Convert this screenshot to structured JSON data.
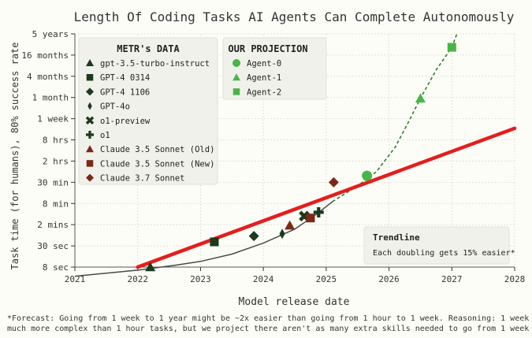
{
  "chart_data": {
    "type": "scatter",
    "title": "Length Of Coding Tasks AI Agents Can Complete Autonomously",
    "xlabel": "Model release date",
    "ylabel": "Task time (for humans), 80% success rate",
    "x_ticks": [
      "2021",
      "2022",
      "2023",
      "2024",
      "2025",
      "2026",
      "2027",
      "2028"
    ],
    "xlim": [
      2021,
      2028
    ],
    "y_scale": "log",
    "y_unit": "minutes",
    "y_ticks": [
      {
        "label": "8 sec",
        "minutes": 0.133
      },
      {
        "label": "30 sec",
        "minutes": 0.5
      },
      {
        "label": "2 mins",
        "minutes": 2
      },
      {
        "label": "8 min",
        "minutes": 8
      },
      {
        "label": "30 min",
        "minutes": 30
      },
      {
        "label": "2 hrs",
        "minutes": 120
      },
      {
        "label": "8 hrs",
        "minutes": 480
      },
      {
        "label": "1 week",
        "minutes": 2400
      },
      {
        "label": "1 month",
        "minutes": 10000
      },
      {
        "label": "4 months",
        "minutes": 40000
      },
      {
        "label": "16 months",
        "minutes": 160000
      },
      {
        "label": "5 years",
        "minutes": 600000
      }
    ],
    "grid": true,
    "legends": [
      {
        "title": "METR's DATA",
        "series": [
          {
            "name": "gpt-3.5-turbo-instruct",
            "marker": "triangle",
            "color": "#1c3a1c",
            "x": 2022.2,
            "y": 0.133
          },
          {
            "name": "GPT-4 0314",
            "marker": "square",
            "color": "#1c3a1c",
            "x": 2023.22,
            "y": 0.65
          },
          {
            "name": "GPT-4 1106",
            "marker": "diamond",
            "color": "#1c3a1c",
            "x": 2023.85,
            "y": 0.95
          },
          {
            "name": "GPT-4o",
            "marker": "thin-diamond",
            "color": "#1c3a1c",
            "x": 2024.3,
            "y": 1.1
          },
          {
            "name": "o1-preview",
            "marker": "x",
            "color": "#1c3a1c",
            "x": 2024.65,
            "y": 3.5
          },
          {
            "name": "o1",
            "marker": "plus",
            "color": "#1c3a1c",
            "x": 2024.88,
            "y": 4.5
          },
          {
            "name": "Claude 3.5 Sonnet (Old)",
            "marker": "triangle",
            "color": "#7a2a16",
            "x": 2024.42,
            "y": 1.9
          },
          {
            "name": "Claude 3.5 Sonnet (New)",
            "marker": "square",
            "color": "#7a2a16",
            "x": 2024.75,
            "y": 3.1
          },
          {
            "name": "Claude 3.7 Sonnet",
            "marker": "diamond",
            "color": "#7a2a16",
            "x": 2025.12,
            "y": 30
          }
        ]
      },
      {
        "title": "OUR PROJECTION",
        "series": [
          {
            "name": "Agent-0",
            "marker": "circle",
            "color": "#47b647",
            "x": 2025.65,
            "y": 46
          },
          {
            "name": "Agent-1",
            "marker": "triangle",
            "color": "#47b647",
            "x": 2026.5,
            "y": 9400
          },
          {
            "name": "Agent-2",
            "marker": "square",
            "color": "#47b647",
            "x": 2027,
            "y": 260000
          }
        ]
      }
    ],
    "trend_line": {
      "color": "#e31e1e",
      "points": [
        {
          "x": 2022,
          "y": 0.133
        },
        {
          "x": 2028,
          "y": 1150
        }
      ]
    },
    "fit_curve": {
      "color": "#4a4a4a",
      "points": [
        {
          "x": 2021,
          "y": 0.075
        },
        {
          "x": 2022,
          "y": 0.11
        },
        {
          "x": 2022.6,
          "y": 0.15
        },
        {
          "x": 2023,
          "y": 0.19
        },
        {
          "x": 2023.5,
          "y": 0.3
        },
        {
          "x": 2024,
          "y": 0.6
        },
        {
          "x": 2024.5,
          "y": 1.5
        },
        {
          "x": 2024.85,
          "y": 4
        },
        {
          "x": 2025.1,
          "y": 9
        }
      ]
    },
    "projection_curve": {
      "color": "#2f7d2f",
      "dashed": true,
      "points": [
        {
          "x": 2025.1,
          "y": 9
        },
        {
          "x": 2025.5,
          "y": 24
        },
        {
          "x": 2025.8,
          "y": 60
        },
        {
          "x": 2026.1,
          "y": 300
        },
        {
          "x": 2026.3,
          "y": 1700
        },
        {
          "x": 2026.5,
          "y": 9400
        },
        {
          "x": 2026.75,
          "y": 60000
        },
        {
          "x": 2027,
          "y": 260000
        },
        {
          "x": 2027.08,
          "y": 600000
        }
      ]
    },
    "annotation": {
      "title": "Trendline",
      "text": "Each doubling gets 15% easier*"
    }
  },
  "footnote": {
    "line1": "*Forecast: Going from 1 week to 1 year might be ~2x easier than going from 1 hour to 1 week. Reasoning: 1 week tasks can be",
    "line2": "much more complex than 1 hour tasks, but we project there aren't as many extra skills needed to go from 1 week to 1 year."
  },
  "colors": {
    "background": "#fdfdf7",
    "grid": "#dcdcd2",
    "legend_bg": "#f1f1ec",
    "trend": "#e31e1e",
    "metr_dark": "#1c3a1c",
    "claude": "#7a2a16",
    "projection": "#47b647"
  }
}
